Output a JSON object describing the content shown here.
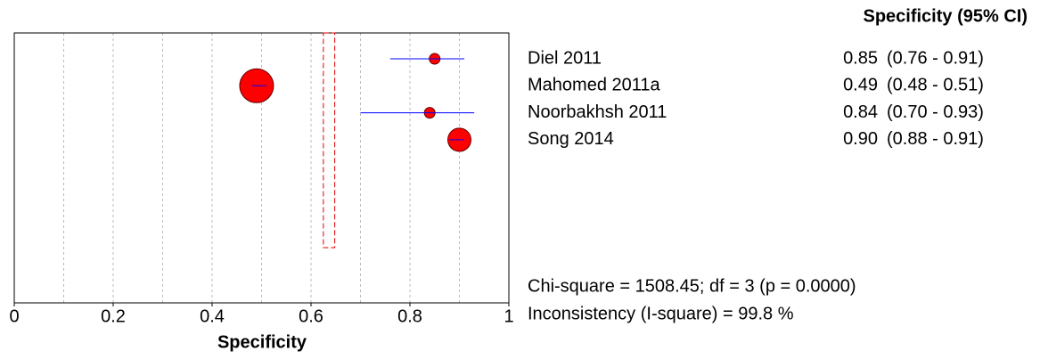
{
  "chart_data": {
    "type": "forest",
    "header": "Specificity (95% CI)",
    "xlabel": "Specificity",
    "categories": [
      "Diel 2011",
      "Mahomed 2011a",
      "Noorbakhsh 2011",
      "Song 2014"
    ],
    "values": [
      0.85,
      0.49,
      0.84,
      0.9
    ],
    "value_labels": [
      "0.85",
      "0.49",
      "0.84",
      "0.90"
    ],
    "lower": [
      0.76,
      0.48,
      0.7,
      0.88
    ],
    "upper": [
      0.91,
      0.51,
      0.93,
      0.91
    ],
    "ci_labels": [
      "(0.76 - 0.91)",
      "(0.48 - 0.51)",
      "(0.70 - 0.93)",
      "(0.88 - 0.91)"
    ],
    "sizes": [
      6,
      19,
      6,
      13
    ],
    "pooled": {
      "lower": 0.625,
      "upper": 0.648
    },
    "marker_color": "#ff0000",
    "ci_color": "#0000ff",
    "pooled_color": "#e00000",
    "xlim": [
      0,
      1
    ],
    "xticks": [
      0,
      0.2,
      0.4,
      0.6,
      0.8,
      1
    ],
    "gridticks": [
      0.1,
      0.2,
      0.3,
      0.4,
      0.5,
      0.6,
      0.7,
      0.8,
      0.9
    ],
    "grid": true,
    "annotations": [
      "Chi-square = 1508.45; df =  3 (p = 0.0000)",
      "Inconsistency (I-square) = 99.8 %"
    ]
  }
}
